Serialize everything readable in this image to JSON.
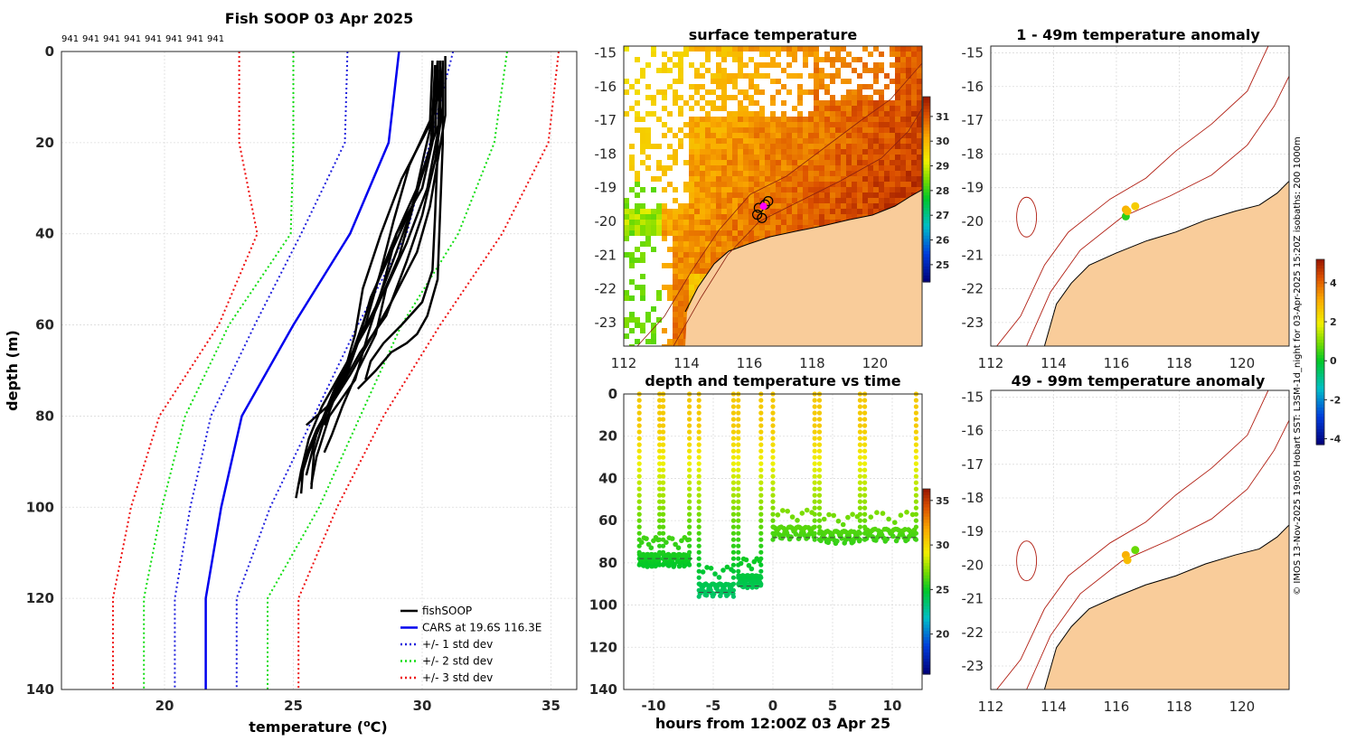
{
  "colors": {
    "fish": "#000000",
    "cars": "#0000ee",
    "std1": "#2020dd",
    "std2": "#10dd10",
    "std3": "#ee1010",
    "land": "#f9cc9a",
    "isobath": "#b01c10",
    "magenta": "#ff00ff",
    "dashline": "#444444"
  },
  "chart_data": [
    {
      "id": "profile",
      "type": "line",
      "title": "Fish SOOP 03 Apr 2025",
      "xlabel_prefix": "temperature (",
      "xlabel_sup": "o",
      "xlabel_suffix": "C)",
      "ylabel": "depth (m)",
      "xlim": [
        16,
        36
      ],
      "ylim": [
        0,
        140
      ],
      "xticks": [
        20,
        25,
        30,
        35
      ],
      "yticks": [
        0,
        20,
        40,
        60,
        80,
        100,
        120,
        140
      ],
      "id_labels": [
        "941",
        "941",
        "941",
        "941",
        "941",
        "941",
        "941",
        "941"
      ],
      "legend": [
        "fishSOOP",
        "CARS at 19.6S 116.3E",
        "+/- 1 std dev",
        "+/- 2 std dev",
        "+/- 3 std dev"
      ],
      "depths": [
        0,
        20,
        40,
        60,
        80,
        100,
        120,
        140
      ],
      "cars_mean": [
        29.1,
        28.7,
        27.2,
        25.0,
        23.0,
        22.2,
        21.6,
        21.6
      ],
      "std1_low": [
        27.1,
        27.0,
        25.3,
        23.5,
        21.8,
        21.0,
        20.4,
        20.4
      ],
      "std1_high": [
        31.2,
        30.3,
        29.4,
        27.5,
        25.8,
        24.1,
        22.8,
        22.8
      ],
      "std2_low": [
        25.0,
        25.0,
        24.9,
        22.5,
        20.8,
        19.9,
        19.2,
        19.2
      ],
      "std2_high": [
        33.3,
        32.8,
        31.4,
        29.2,
        27.6,
        26.0,
        24.0,
        24.0
      ],
      "std3_low": [
        22.9,
        22.9,
        23.6,
        22.1,
        19.8,
        18.7,
        18.0,
        18.0
      ],
      "std3_high": [
        35.3,
        34.9,
        33.1,
        30.7,
        28.5,
        26.7,
        25.2,
        25.2
      ],
      "fish_profiles": [
        {
          "t": [
            30.6,
            30.6,
            30.1,
            29.6,
            29.1,
            28.1,
            27.1,
            26.1,
            25.6,
            25.3,
            25.1
          ],
          "d": [
            2,
            10,
            22,
            35,
            45,
            58,
            68,
            78,
            85,
            92,
            98
          ]
        },
        {
          "t": [
            30.8,
            30.8,
            30.5,
            30.0,
            29.4,
            28.6,
            27.6,
            26.7,
            25.9,
            25.4,
            25.3
          ],
          "d": [
            2,
            12,
            24,
            36,
            46,
            58,
            66,
            75,
            83,
            90,
            97
          ]
        },
        {
          "t": [
            30.5,
            30.4,
            29.5,
            28.9,
            28.4,
            27.8,
            27.0,
            26.2,
            25.6,
            25.2
          ],
          "d": [
            3,
            14,
            25,
            37,
            48,
            60,
            70,
            80,
            88,
            95
          ]
        },
        {
          "t": [
            30.7,
            30.7,
            30.2,
            29.7,
            29.0,
            28.2,
            27.4,
            26.6,
            25.9,
            25.5
          ],
          "d": [
            2,
            15,
            23,
            33,
            44,
            56,
            65,
            74,
            84,
            93
          ]
        },
        {
          "t": [
            30.9,
            30.9,
            30.6,
            30.3,
            29.8,
            28.8,
            28.0,
            27.2,
            26.3,
            25.8,
            25.7
          ],
          "d": [
            1,
            14,
            24,
            34,
            44,
            55,
            63,
            71,
            79,
            88,
            96
          ]
        },
        {
          "t": [
            30.4,
            30.3,
            29.2,
            28.4,
            27.7,
            27.4,
            27.0,
            26.6,
            26.2
          ],
          "d": [
            2,
            16,
            28,
            40,
            52,
            62,
            70,
            76,
            82
          ]
        },
        {
          "t": [
            30.8,
            30.6,
            30.2,
            29.4,
            28.6,
            28.2,
            27.5,
            26.9,
            26.5,
            26.2
          ],
          "d": [
            3,
            18,
            30,
            42,
            52,
            62,
            70,
            78,
            84,
            88
          ]
        },
        {
          "t": [
            30.6,
            30.5,
            29.8,
            29.0,
            28.5,
            27.9,
            27.4,
            26.4,
            25.9,
            25.7
          ],
          "d": [
            4,
            18,
            30,
            40,
            51,
            62,
            72,
            80,
            89,
            95
          ]
        },
        {
          "t": [
            30.8,
            30.8,
            30.7,
            30.6,
            30.2,
            29.8,
            29.4,
            28.8,
            28.2,
            27.5
          ],
          "d": [
            2,
            20,
            35,
            50,
            58,
            62,
            64,
            66,
            70,
            74
          ]
        },
        {
          "t": [
            30.7,
            30.6,
            30.5,
            30.4,
            30.0,
            29.2,
            28.5,
            28.0,
            27.8
          ],
          "d": [
            2,
            22,
            36,
            48,
            55,
            60,
            64,
            68,
            72
          ]
        },
        {
          "t": [
            30.6,
            30.3,
            29.6,
            28.8,
            28.0,
            27.5,
            27.0,
            26.3,
            25.5
          ],
          "d": [
            2,
            22,
            34,
            44,
            54,
            64,
            72,
            78,
            82
          ]
        },
        {
          "t": [
            30.5,
            30.4,
            30.0,
            29.0,
            28.3,
            27.8,
            27.3,
            26.8
          ],
          "d": [
            3,
            20,
            30,
            40,
            50,
            58,
            66,
            74
          ]
        }
      ]
    },
    {
      "id": "sst_map",
      "type": "heatmap",
      "title": "surface temperature",
      "xlim": [
        112,
        121.5
      ],
      "ylim": [
        -23.7,
        -14.8
      ],
      "xticks": [
        112,
        114,
        116,
        118,
        120
      ],
      "yticks": [
        -15,
        -16,
        -17,
        -18,
        -19,
        -20,
        -21,
        -22,
        -23
      ],
      "colorbar_range": [
        24.3,
        31.8
      ],
      "colorbar_ticks": [
        25,
        26,
        27,
        28,
        29,
        30,
        31
      ]
    },
    {
      "id": "time_series",
      "type": "scatter",
      "title": "depth and temperature vs time",
      "xlabel": "hours from 12:00Z 03 Apr 25",
      "xlim": [
        -12.5,
        12.5
      ],
      "ylim": [
        0,
        140
      ],
      "xticks": [
        -10,
        -5,
        0,
        5,
        10
      ],
      "yticks": [
        0,
        20,
        40,
        60,
        80,
        100,
        120,
        140
      ],
      "colorbar_range": [
        15.5,
        36.3
      ],
      "colorbar_ticks": [
        20,
        25,
        30,
        35
      ],
      "casts": [
        {
          "start": -11.2,
          "end": -9.5,
          "bottom": 82
        },
        {
          "start": -9.2,
          "end": -7.0,
          "bottom": 82
        },
        {
          "start": -6.2,
          "end": -3.3,
          "bottom": 96
        },
        {
          "start": -2.9,
          "end": -1.0,
          "bottom": 92
        },
        {
          "start": 0.0,
          "end": 3.5,
          "bottom": 69
        },
        {
          "start": 3.9,
          "end": 7.3,
          "bottom": 71
        },
        {
          "start": 7.7,
          "end": 12.0,
          "bottom": 70
        }
      ],
      "mean_bottoms": [
        {
          "start": -11.2,
          "end": -6.7,
          "d": 78
        },
        {
          "start": -6.2,
          "end": -3.3,
          "d": 94
        },
        {
          "start": -2.9,
          "end": -1.0,
          "d": 91
        },
        {
          "start": 0.0,
          "end": 12.0,
          "d": 68
        }
      ]
    },
    {
      "id": "anom_shallow",
      "type": "scatter",
      "title": "1 - 49m temperature anomaly",
      "xlim": [
        112,
        121.5
      ],
      "ylim": [
        -23.7,
        -14.8
      ],
      "xticks": [
        112,
        114,
        116,
        118,
        120
      ],
      "yticks": [
        -15,
        -16,
        -17,
        -18,
        -19,
        -20,
        -21,
        -22,
        -23
      ],
      "points": [
        {
          "lon": 116.3,
          "lat": -19.65,
          "anom": 3.0
        },
        {
          "lon": 116.6,
          "lat": -19.55,
          "anom": 2.5
        },
        {
          "lon": 116.3,
          "lat": -19.85,
          "anom": 0.3
        },
        {
          "lon": 116.35,
          "lat": -19.7,
          "anom": 2.8
        }
      ]
    },
    {
      "id": "anom_deep",
      "type": "scatter",
      "title": "49 - 99m temperature anomaly",
      "xlim": [
        112,
        121.5
      ],
      "ylim": [
        -23.7,
        -14.8
      ],
      "xticks": [
        112,
        114,
        116,
        118,
        120
      ],
      "yticks": [
        -15,
        -16,
        -17,
        -18,
        -19,
        -20,
        -21,
        -22,
        -23
      ],
      "points": [
        {
          "lon": 116.3,
          "lat": -19.7,
          "anom": 3.0
        },
        {
          "lon": 116.35,
          "lat": -19.85,
          "anom": 2.8
        },
        {
          "lon": 116.6,
          "lat": -19.55,
          "anom": 0.8
        }
      ],
      "colorbar_range": [
        -4.3,
        5.2
      ],
      "colorbar_ticks": [
        -4,
        -2,
        0,
        2,
        4
      ]
    }
  ],
  "credit": "© IMOS 13-Nov-2025 19:05 Hobart SST: L3SM-1d_night for 03-Apr-2025 15:20Z isobaths: 200  1000m"
}
